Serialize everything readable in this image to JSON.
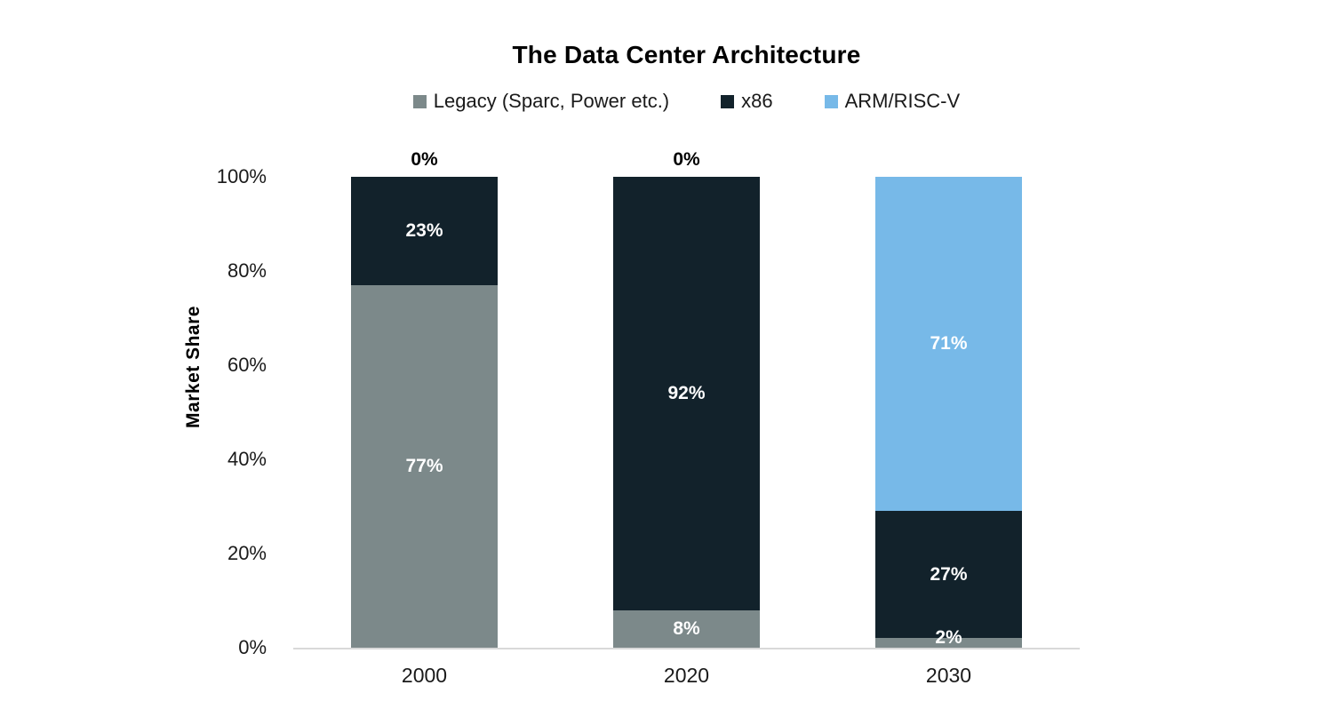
{
  "chart_data": {
    "type": "bar",
    "stacked": true,
    "title": "The Data Center Architecture",
    "ylabel": "Market Share",
    "xlabel": "",
    "categories": [
      "2000",
      "2020",
      "2030"
    ],
    "series": [
      {
        "name": "Legacy (Sparc, Power etc.)",
        "color": "#7c898a",
        "values": [
          77,
          8,
          2
        ]
      },
      {
        "name": "x86",
        "color": "#12222b",
        "values": [
          23,
          92,
          27
        ]
      },
      {
        "name": "ARM/RISC-V",
        "color": "#77b9e8",
        "values": [
          0,
          0,
          71
        ]
      }
    ],
    "value_suffix": "%",
    "y_ticks": [
      "0%",
      "20%",
      "40%",
      "60%",
      "80%",
      "100%"
    ],
    "y_tick_values": [
      0,
      20,
      40,
      60,
      80,
      100
    ],
    "ylim": [
      0,
      100
    ],
    "grid": false,
    "legend_position": "top",
    "axis_line_color": "#d9d9d9",
    "value_label_color_inside": "#ffffff",
    "value_label_color_outside": "#000000",
    "background_color": "#ffffff"
  }
}
